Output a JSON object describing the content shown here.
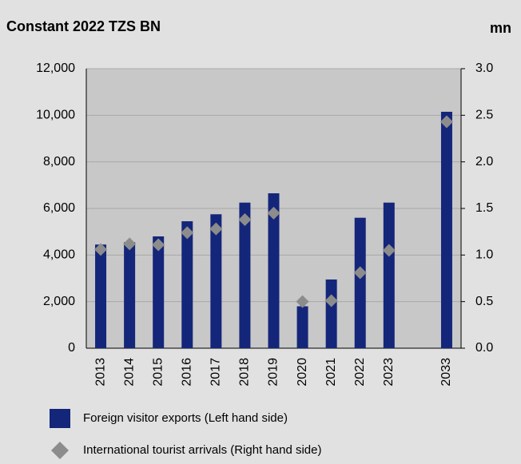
{
  "chart_data": {
    "type": "bar",
    "title": "Constant 2022 TZS BN",
    "y2_label": "mn",
    "categories": [
      "2013",
      "2014",
      "2015",
      "2016",
      "2017",
      "2018",
      "2019",
      "2020",
      "2021",
      "2022",
      "2023",
      null,
      "2033"
    ],
    "series": [
      {
        "name": "Foreign visitor exports (Left hand side)",
        "type": "bar",
        "color": "#14267a",
        "values": [
          4450,
          4550,
          4800,
          5450,
          5750,
          6250,
          6650,
          1800,
          2950,
          5600,
          6250,
          null,
          10150
        ]
      },
      {
        "name": "International tourist arrivals (Right hand side)",
        "type": "scatter",
        "axis": "y2",
        "color": "#8c8c8c",
        "values": [
          1.06,
          1.12,
          1.11,
          1.24,
          1.28,
          1.38,
          1.45,
          0.5,
          0.51,
          0.81,
          1.05,
          null,
          2.43
        ]
      }
    ],
    "ylim": [
      0,
      12000
    ],
    "yticks": [
      0,
      {
        "value": 2000,
        "label": "2,000"
      },
      {
        "value": 4000,
        "label": "4,000"
      },
      {
        "value": 6000,
        "label": "6,000"
      },
      {
        "value": 8000,
        "label": "8,000"
      },
      {
        "value": 10000,
        "label": "10,000"
      },
      {
        "value": 12000,
        "label": "12,000"
      }
    ],
    "y2lim": [
      0,
      3
    ],
    "y2ticks": [
      {
        "value": 0,
        "label": "0.0"
      },
      0.5,
      {
        "value": 1,
        "label": "1.0"
      },
      1.5,
      {
        "value": 2,
        "label": "2.0"
      },
      2.5,
      {
        "value": 3,
        "label": "3.0"
      }
    ],
    "grid": true
  }
}
